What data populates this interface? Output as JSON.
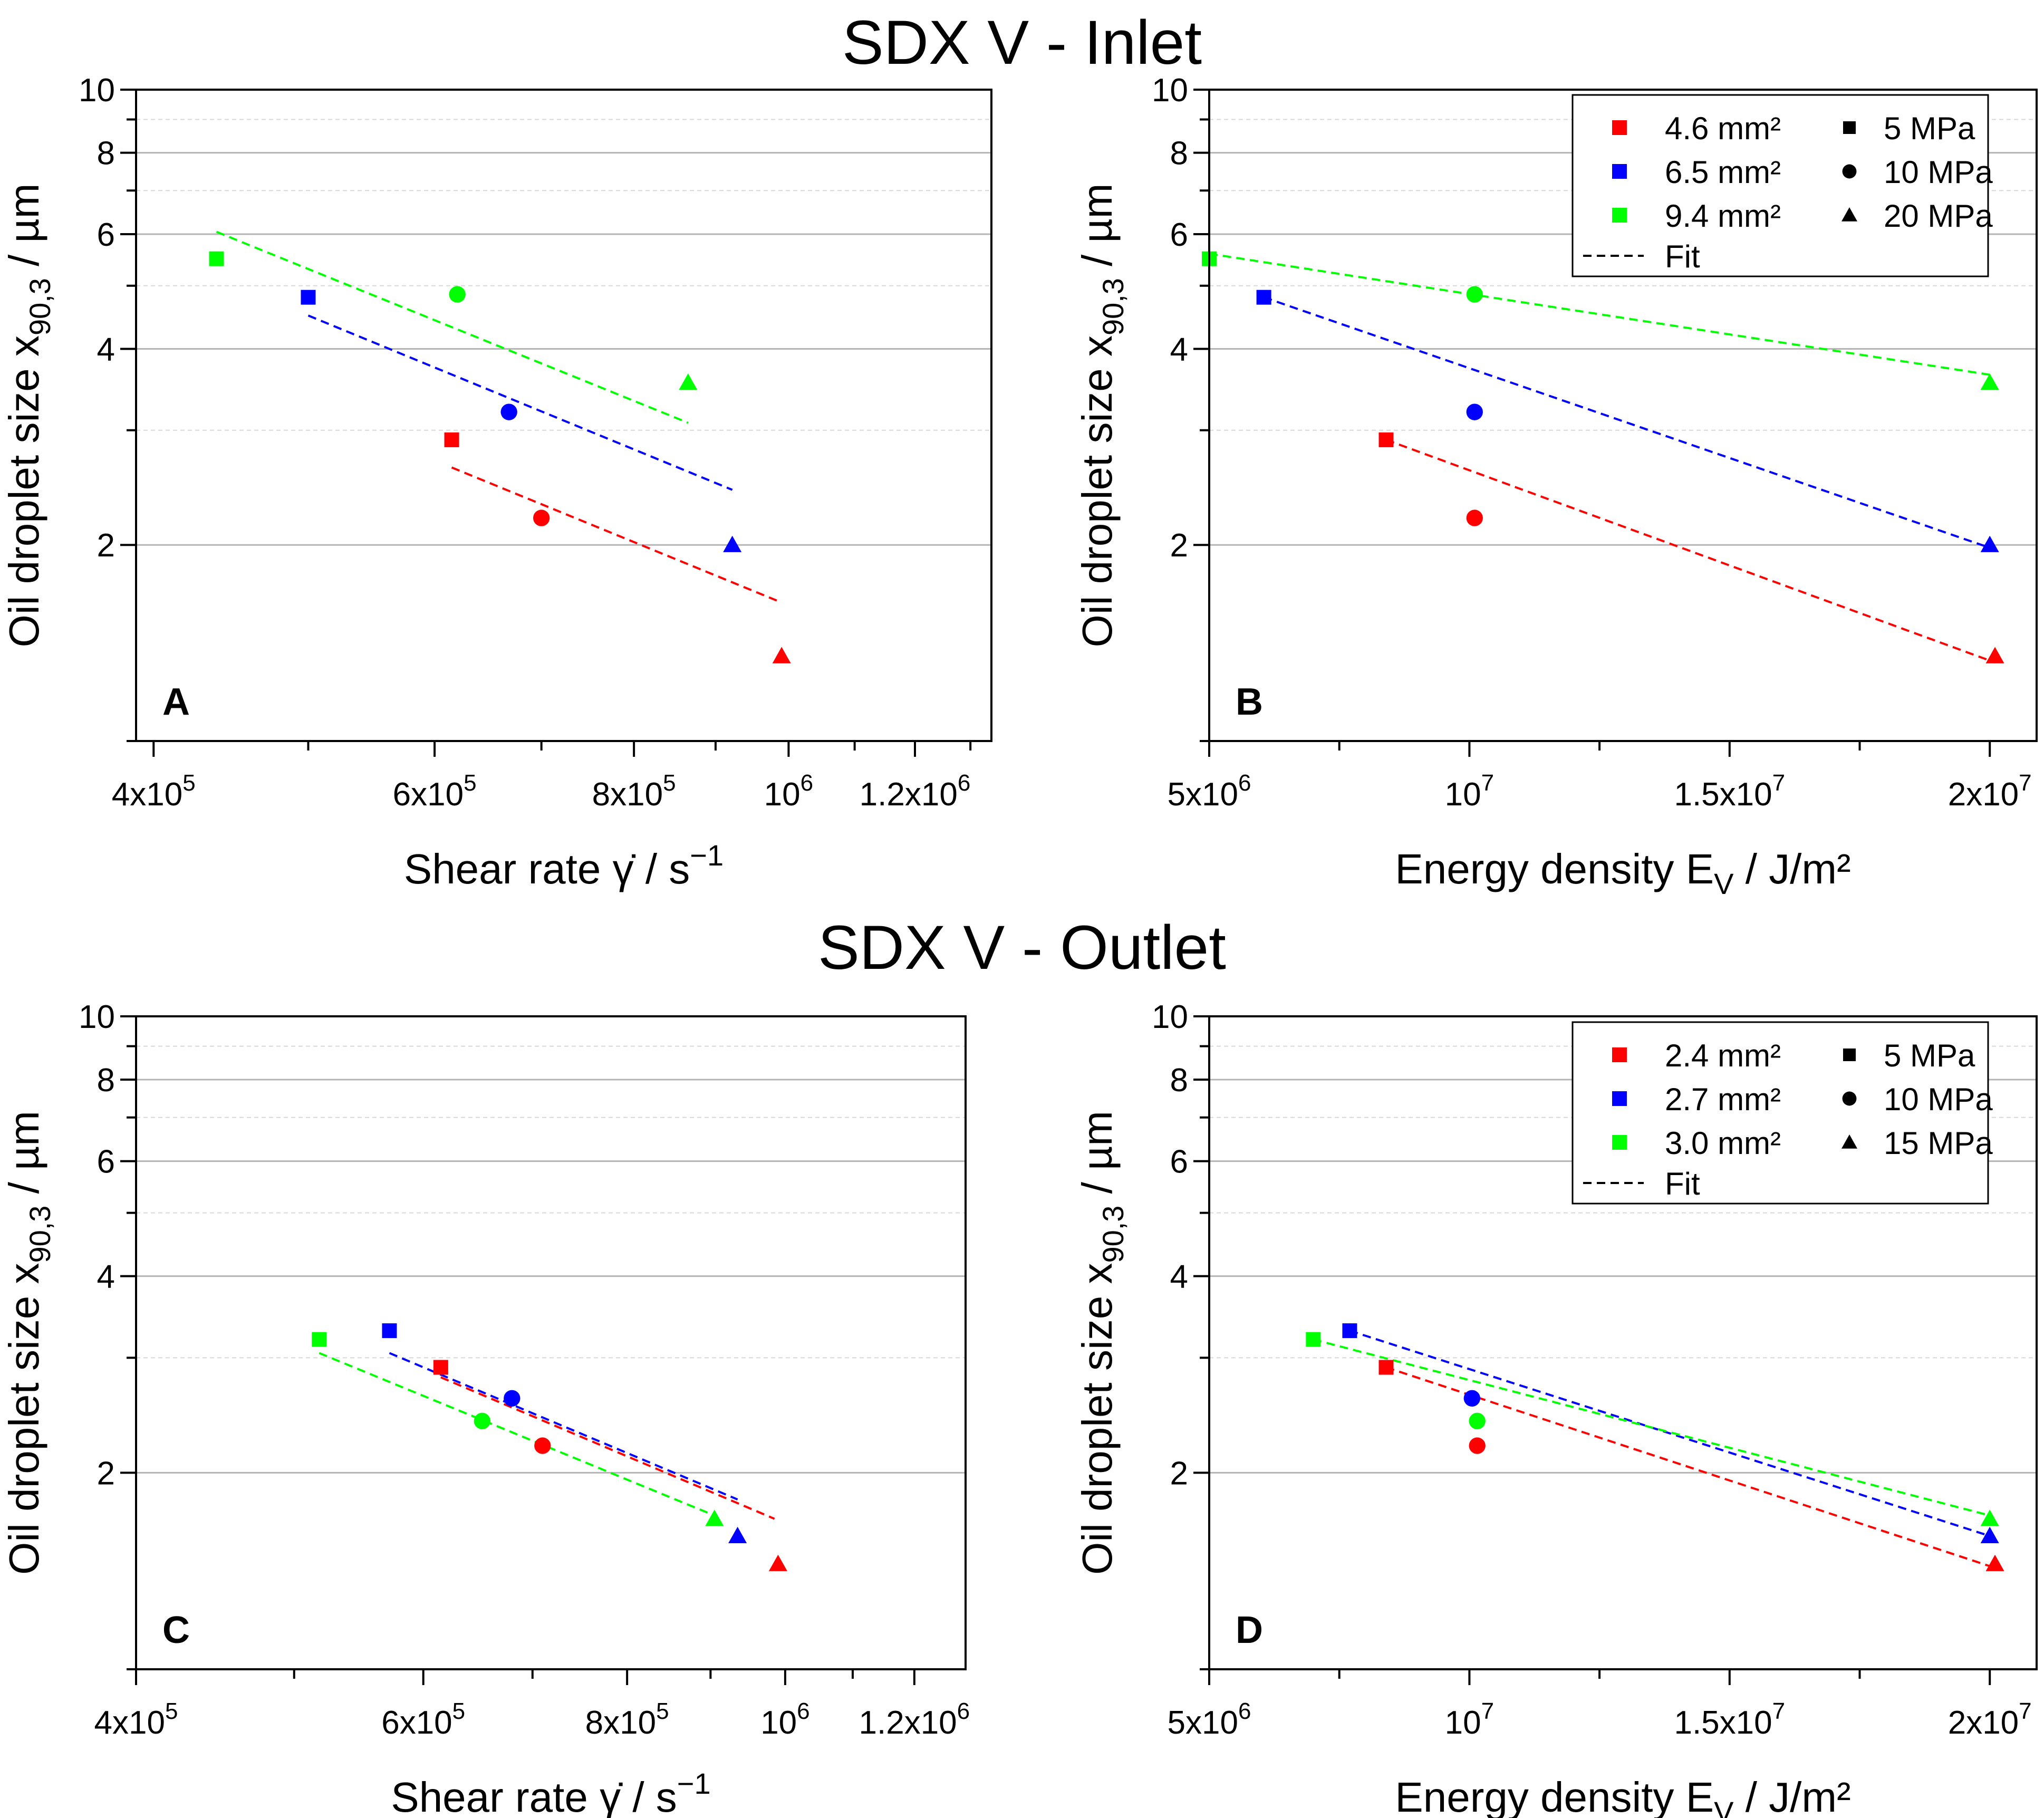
{
  "titles": {
    "inlet": "SDX V - Inlet",
    "outlet": "SDX V - Outlet"
  },
  "colors": {
    "red": "#ff0000",
    "blue": "#0000ff",
    "green": "#00ff00"
  },
  "chart_data": [
    {
      "id": "A",
      "panel_label": "A",
      "type": "scatter",
      "x_scale": "log",
      "y_scale": "log",
      "xlim": [
        390000,
        1340000
      ],
      "ylim": [
        1,
        10
      ],
      "xticks": [
        {
          "v": 400000,
          "b": "4x10",
          "e": "5"
        },
        {
          "v": 600000,
          "b": "6x10",
          "e": "5"
        },
        {
          "v": 800000,
          "b": "8x10",
          "e": "5"
        },
        {
          "v": 1000000,
          "b": "10",
          "e": "6"
        },
        {
          "v": 1200000,
          "b": "1.2x10",
          "e": "6"
        }
      ],
      "yticks": [
        {
          "v": 2,
          "t": "2"
        },
        {
          "v": 4,
          "t": "4"
        },
        {
          "v": 6,
          "t": "6"
        },
        {
          "v": 8,
          "t": "8"
        },
        {
          "v": 10,
          "t": "10"
        }
      ],
      "xlabel": "Shear rate γ̇ / s⁻¹",
      "ylabel": "Oil droplet size x90,3 / µm",
      "series": [
        {
          "name": "4.6 mm²",
          "color": "red",
          "points": [
            {
              "x": 615000,
              "y": 2.9,
              "m": "square"
            },
            {
              "x": 700000,
              "y": 2.2,
              "m": "circle"
            },
            {
              "x": 990000,
              "y": 1.35,
              "m": "triangle"
            }
          ],
          "fit": [
            [
              615000,
              2.63
            ],
            [
              985000,
              1.64
            ]
          ]
        },
        {
          "name": "6.5 mm²",
          "color": "blue",
          "points": [
            {
              "x": 500000,
              "y": 4.8,
              "m": "square"
            },
            {
              "x": 668000,
              "y": 3.2,
              "m": "circle"
            },
            {
              "x": 922000,
              "y": 2.0,
              "m": "triangle"
            }
          ],
          "fit": [
            [
              500000,
              4.5
            ],
            [
              922000,
              2.43
            ]
          ]
        },
        {
          "name": "9.4 mm²",
          "color": "green",
          "points": [
            {
              "x": 438000,
              "y": 5.5,
              "m": "square"
            },
            {
              "x": 620000,
              "y": 4.85,
              "m": "circle"
            },
            {
              "x": 865000,
              "y": 3.55,
              "m": "triangle"
            }
          ],
          "fit": [
            [
              438000,
              6.05
            ],
            [
              865000,
              3.08
            ]
          ]
        }
      ]
    },
    {
      "id": "B",
      "panel_label": "B",
      "type": "scatter",
      "x_scale": "linear",
      "y_scale": "log",
      "xlim": [
        5000000,
        20900000
      ],
      "ylim": [
        1,
        10
      ],
      "xticks": [
        {
          "v": 5000000,
          "b": "5x10",
          "e": "6"
        },
        {
          "v": 10000000,
          "b": "10",
          "e": "7"
        },
        {
          "v": 15000000,
          "b": "1.5x10",
          "e": "7"
        },
        {
          "v": 20000000,
          "b": "2x10",
          "e": "7"
        }
      ],
      "yticks": [
        {
          "v": 2,
          "t": "2"
        },
        {
          "v": 4,
          "t": "4"
        },
        {
          "v": 6,
          "t": "6"
        },
        {
          "v": 8,
          "t": "8"
        },
        {
          "v": 10,
          "t": "10"
        }
      ],
      "xlabel": "Energy density Ev / J/m²",
      "ylabel": "Oil droplet size x90,3 / µm",
      "legend": {
        "position": "top-right",
        "areas": [
          "4.6 mm²",
          "6.5 mm²",
          "9.4 mm²"
        ],
        "pressures": [
          "5 MPa",
          "10 MPa",
          "20 MPa"
        ],
        "fit_label": "Fit"
      },
      "series": [
        {
          "name": "4.6 mm²",
          "color": "red",
          "points": [
            {
              "x": 8400000,
              "y": 2.9,
              "m": "square"
            },
            {
              "x": 10100000,
              "y": 2.2,
              "m": "circle"
            },
            {
              "x": 20100000,
              "y": 1.35,
              "m": "triangle"
            }
          ],
          "fit": [
            [
              8400000,
              2.9
            ],
            [
              20100000,
              1.32
            ]
          ]
        },
        {
          "name": "6.5 mm²",
          "color": "blue",
          "points": [
            {
              "x": 6050000,
              "y": 4.8,
              "m": "square"
            },
            {
              "x": 10100000,
              "y": 3.2,
              "m": "circle"
            },
            {
              "x": 20000000,
              "y": 2.0,
              "m": "triangle"
            }
          ],
          "fit": [
            [
              6050000,
              4.8
            ],
            [
              20000000,
              1.98
            ]
          ]
        },
        {
          "name": "9.4 mm²",
          "color": "green",
          "points": [
            {
              "x": 5000000,
              "y": 5.5,
              "m": "square"
            },
            {
              "x": 10100000,
              "y": 4.85,
              "m": "circle"
            },
            {
              "x": 20000000,
              "y": 3.55,
              "m": "triangle"
            }
          ],
          "fit": [
            [
              5000000,
              5.6
            ],
            [
              20000000,
              3.65
            ]
          ]
        }
      ]
    },
    {
      "id": "C",
      "panel_label": "C",
      "type": "scatter",
      "x_scale": "log",
      "y_scale": "log",
      "xlim": [
        400000,
        1290000
      ],
      "ylim": [
        1,
        10
      ],
      "xticks": [
        {
          "v": 400000,
          "b": "4x10",
          "e": "5"
        },
        {
          "v": 600000,
          "b": "6x10",
          "e": "5"
        },
        {
          "v": 800000,
          "b": "8x10",
          "e": "5"
        },
        {
          "v": 1000000,
          "b": "10",
          "e": "6"
        },
        {
          "v": 1200000,
          "b": "1.2x10",
          "e": "6"
        }
      ],
      "yticks": [
        {
          "v": 2,
          "t": "2"
        },
        {
          "v": 4,
          "t": "4"
        },
        {
          "v": 6,
          "t": "6"
        },
        {
          "v": 8,
          "t": "8"
        },
        {
          "v": 10,
          "t": "10"
        }
      ],
      "xlabel": "Shear rate γ̇ / s⁻¹",
      "ylabel": "Oil droplet size x90,3 / µm",
      "series": [
        {
          "name": "2.4 mm²",
          "color": "red",
          "points": [
            {
              "x": 615000,
              "y": 2.9,
              "m": "square"
            },
            {
              "x": 710000,
              "y": 2.2,
              "m": "circle"
            },
            {
              "x": 990000,
              "y": 1.45,
              "m": "triangle"
            }
          ],
          "fit": [
            [
              615000,
              2.8
            ],
            [
              985000,
              1.7
            ]
          ]
        },
        {
          "name": "2.7 mm²",
          "color": "blue",
          "points": [
            {
              "x": 572000,
              "y": 3.3,
              "m": "square"
            },
            {
              "x": 680000,
              "y": 2.6,
              "m": "circle"
            },
            {
              "x": 935000,
              "y": 1.6,
              "m": "triangle"
            }
          ],
          "fit": [
            [
              572000,
              3.05
            ],
            [
              935000,
              1.82
            ]
          ]
        },
        {
          "name": "3.0 mm²",
          "color": "green",
          "points": [
            {
              "x": 518000,
              "y": 3.2,
              "m": "square"
            },
            {
              "x": 652000,
              "y": 2.4,
              "m": "circle"
            },
            {
              "x": 905000,
              "y": 1.7,
              "m": "triangle"
            }
          ],
          "fit": [
            [
              518000,
              3.05
            ],
            [
              905000,
              1.72
            ]
          ]
        }
      ]
    },
    {
      "id": "D",
      "panel_label": "D",
      "type": "scatter",
      "x_scale": "linear",
      "y_scale": "log",
      "xlim": [
        5000000,
        20900000
      ],
      "ylim": [
        1,
        10
      ],
      "xticks": [
        {
          "v": 5000000,
          "b": "5x10",
          "e": "6"
        },
        {
          "v": 10000000,
          "b": "10",
          "e": "7"
        },
        {
          "v": 15000000,
          "b": "1.5x10",
          "e": "7"
        },
        {
          "v": 20000000,
          "b": "2x10",
          "e": "7"
        }
      ],
      "yticks": [
        {
          "v": 2,
          "t": "2"
        },
        {
          "v": 4,
          "t": "4"
        },
        {
          "v": 6,
          "t": "6"
        },
        {
          "v": 8,
          "t": "8"
        },
        {
          "v": 10,
          "t": "10"
        }
      ],
      "xlabel": "Energy density Ev / J/m²",
      "ylabel": "Oil droplet size x90,3 / µm",
      "legend": {
        "position": "top-right",
        "areas": [
          "2.4 mm²",
          "2.7 mm²",
          "3.0 mm²"
        ],
        "pressures": [
          "5 MPa",
          "10 MPa",
          "15 MPa"
        ],
        "fit_label": "Fit"
      },
      "series": [
        {
          "name": "2.4 mm²",
          "color": "red",
          "points": [
            {
              "x": 8400000,
              "y": 2.9,
              "m": "square"
            },
            {
              "x": 10150000,
              "y": 2.2,
              "m": "circle"
            },
            {
              "x": 20100000,
              "y": 1.45,
              "m": "triangle"
            }
          ],
          "fit": [
            [
              8400000,
              2.9
            ],
            [
              20100000,
              1.43
            ]
          ]
        },
        {
          "name": "2.7 mm²",
          "color": "blue",
          "points": [
            {
              "x": 7700000,
              "y": 3.3,
              "m": "square"
            },
            {
              "x": 10050000,
              "y": 2.6,
              "m": "circle"
            },
            {
              "x": 20000000,
              "y": 1.6,
              "m": "triangle"
            }
          ],
          "fit": [
            [
              7700000,
              3.3
            ],
            [
              20000000,
              1.6
            ]
          ]
        },
        {
          "name": "3.0 mm²",
          "color": "green",
          "points": [
            {
              "x": 7000000,
              "y": 3.2,
              "m": "square"
            },
            {
              "x": 10150000,
              "y": 2.4,
              "m": "circle"
            },
            {
              "x": 20000000,
              "y": 1.7,
              "m": "triangle"
            }
          ],
          "fit": [
            [
              7000000,
              3.2
            ],
            [
              20000000,
              1.72
            ]
          ]
        }
      ]
    }
  ]
}
